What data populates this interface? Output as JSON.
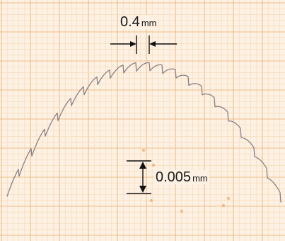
{
  "annotations": {
    "pitch": {
      "value": "0.4",
      "unit": "mm"
    },
    "depth": {
      "value": "0.005",
      "unit": "mm"
    }
  },
  "colors": {
    "paper": "#fdf1e3",
    "grid_minor": "#f6d8b4",
    "grid_major": "#eebd8a",
    "trace": "#8a7f86",
    "arrow": "#111111",
    "marks": "#f3a86b"
  }
}
